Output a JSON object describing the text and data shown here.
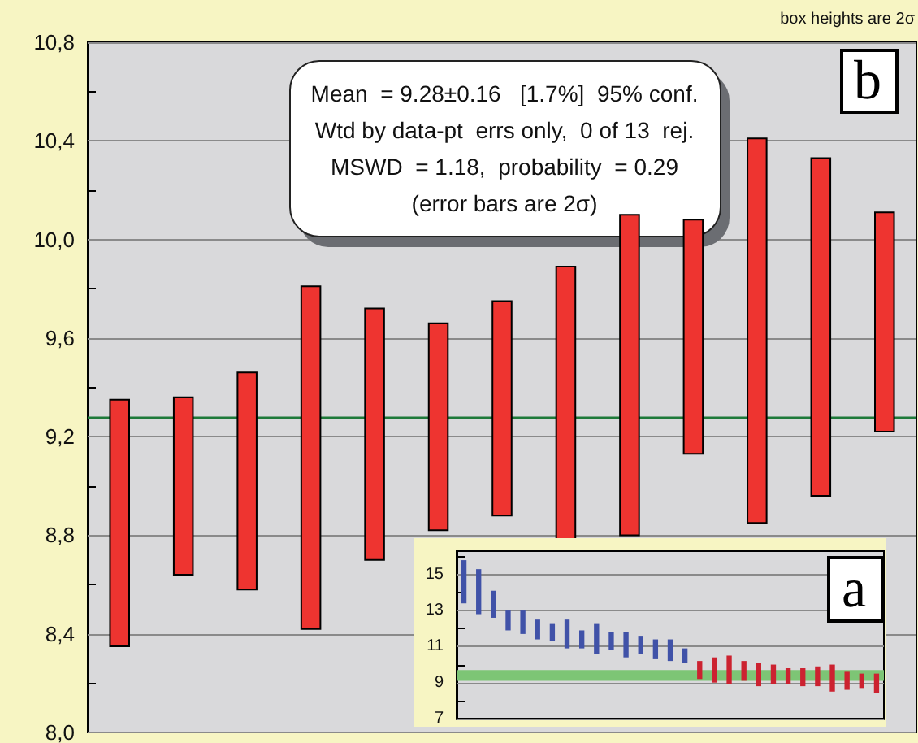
{
  "chart_data": [
    {
      "type": "bar",
      "categories": [
        null,
        null,
        null,
        null,
        null,
        null,
        null,
        null,
        null,
        null,
        null,
        null,
        null
      ],
      "values": [
        1.0,
        0.72,
        0.88,
        1.39,
        1.02,
        0.84,
        0.87,
        1.11,
        1.3,
        0.95,
        1.56,
        1.37,
        0.89
      ],
      "base": [
        8.35,
        8.64,
        8.58,
        8.42,
        8.7,
        8.82,
        8.88,
        8.78,
        8.8,
        9.13,
        8.85,
        8.96,
        9.22
      ],
      "color": "#ee3430",
      "ylim": [
        8.0,
        10.8
      ],
      "yticks": [
        {
          "value": 8.0,
          "label": "8,0"
        },
        {
          "value": 8.2,
          "label": null
        },
        {
          "value": 8.4,
          "label": "8,4"
        },
        {
          "value": 8.6,
          "label": null
        },
        {
          "value": 8.8,
          "label": "8,8"
        },
        {
          "value": 9.0,
          "label": null
        },
        {
          "value": 9.2,
          "label": "9,2"
        },
        {
          "value": 9.4,
          "label": null
        },
        {
          "value": 9.6,
          "label": "9,6"
        },
        {
          "value": 9.8,
          "label": null
        },
        {
          "value": 10.0,
          "label": "10,0"
        },
        {
          "value": 10.2,
          "label": null
        },
        {
          "value": 10.4,
          "label": "10,4"
        },
        {
          "value": 10.6,
          "label": null
        },
        {
          "value": 10.8,
          "label": "10,8"
        }
      ],
      "grid": "y",
      "ref_lines": [
        {
          "axis": "y",
          "value": 9.28,
          "label": null,
          "color": "#1e7a3a"
        }
      ],
      "annotations": [
        "Mean  = 9.28±0.16   [1.7%]  95% conf.\nWtd by data-pt  errs only,  0 of 13  rej.\nMSWD  = 1.18,  probability  = 0.29\n(error bars are 2σ)",
        "box heights are 2σ",
        "b"
      ]
    },
    {
      "type": "bar",
      "categories": [
        null,
        null,
        null,
        null,
        null,
        null,
        null,
        null,
        null,
        null,
        null,
        null,
        null,
        null,
        null,
        null,
        null,
        null,
        null,
        null,
        null,
        null,
        null,
        null,
        null,
        null,
        null,
        null,
        null
      ],
      "values": [
        2.4,
        2.5,
        1.5,
        1.1,
        1.3,
        1.1,
        1.0,
        1.6,
        1.0,
        1.7,
        1.0,
        1.4,
        1.0,
        1.1,
        1.2,
        0.8,
        1.0,
        1.4,
        1.6,
        1.1,
        1.3,
        1.1,
        0.9,
        1.0,
        1.1,
        1.5,
        1.0,
        0.8,
        1.1
      ],
      "base": [
        13.4,
        12.8,
        12.6,
        11.9,
        11.7,
        11.4,
        11.3,
        10.9,
        10.9,
        10.6,
        10.8,
        10.4,
        10.6,
        10.3,
        10.2,
        10.1,
        9.2,
        9.0,
        8.9,
        9.1,
        8.8,
        8.9,
        8.9,
        8.8,
        8.8,
        8.5,
        8.6,
        8.7,
        8.4
      ],
      "colors": [
        "#4052a8",
        "#4052a8",
        "#4052a8",
        "#4052a8",
        "#4052a8",
        "#4052a8",
        "#4052a8",
        "#4052a8",
        "#4052a8",
        "#4052a8",
        "#4052a8",
        "#4052a8",
        "#4052a8",
        "#4052a8",
        "#4052a8",
        "#4052a8",
        "#cc2230",
        "#cc2230",
        "#cc2230",
        "#cc2230",
        "#cc2230",
        "#cc2230",
        "#cc2230",
        "#cc2230",
        "#cc2230",
        "#cc2230",
        "#cc2230",
        "#cc2230",
        "#cc2230"
      ],
      "ylim": [
        7,
        16.3
      ],
      "yticks": [
        7,
        {
          "value": 8,
          "label": null
        },
        9,
        {
          "value": 10,
          "label": null
        },
        11,
        {
          "value": 12,
          "label": null
        },
        13,
        {
          "value": 14,
          "label": null
        },
        15,
        {
          "value": 16,
          "label": null
        }
      ],
      "grid": "y",
      "bands": [
        {
          "axis": "y",
          "from": 9.1,
          "to": 9.7,
          "label": null,
          "color": "#7dc575"
        }
      ],
      "annotations": [
        "a"
      ]
    }
  ]
}
